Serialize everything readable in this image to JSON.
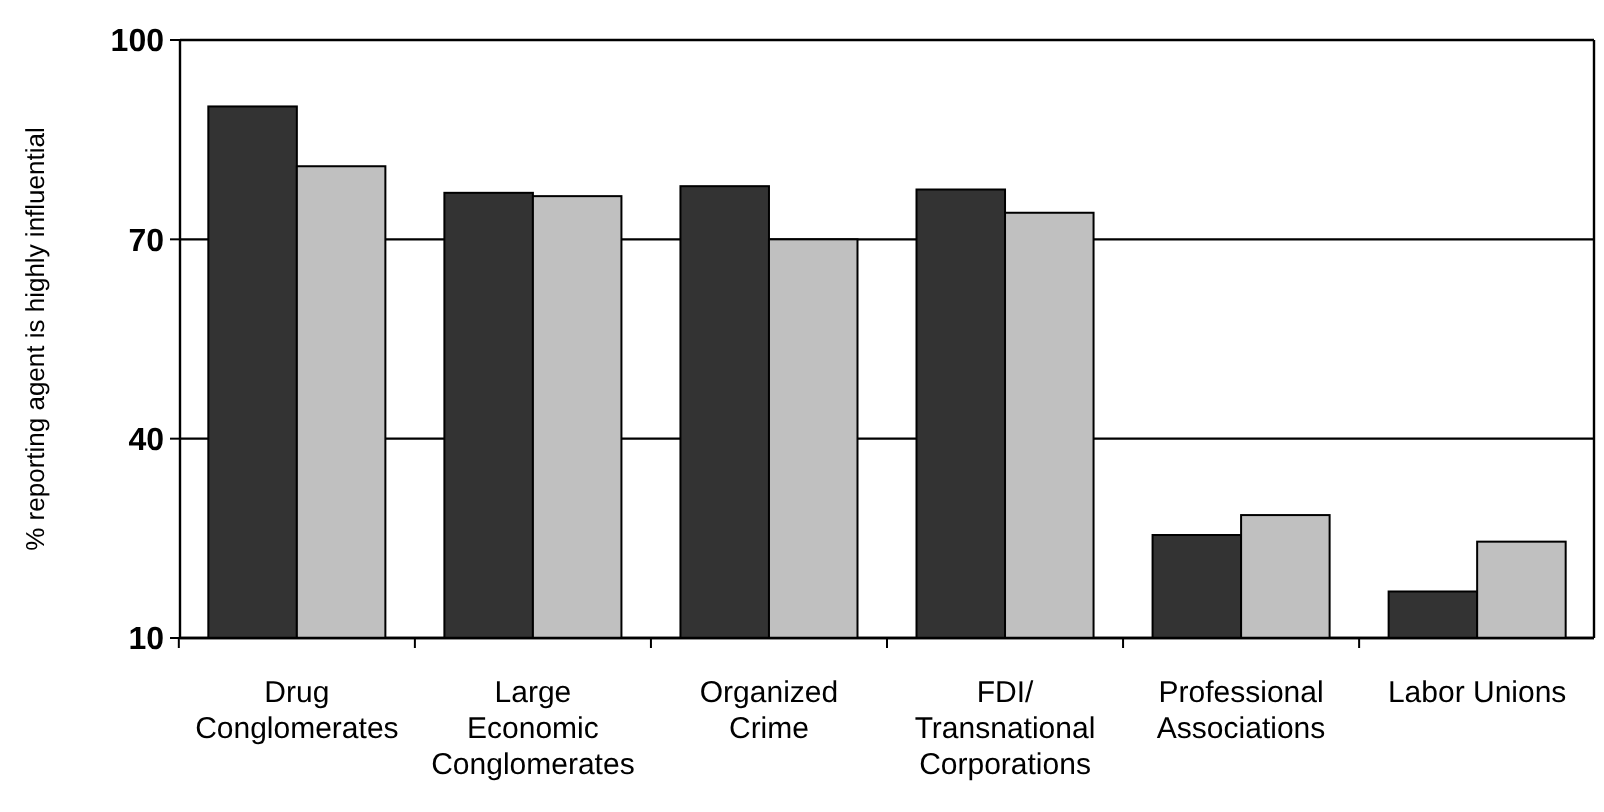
{
  "chart_data": {
    "type": "bar",
    "ylabel": "% reporting agent is highly influential",
    "categories": [
      "Drug\nConglomerates",
      "Large\nEconomic\nConglomerates",
      "Organized\nCrime",
      "FDI/\nTransnational\nCorporations",
      "Professional\nAssociations",
      "Labor Unions"
    ],
    "series": [
      {
        "color": "#333333",
        "values": [
          90,
          77,
          78,
          77.5,
          25.5,
          17
        ]
      },
      {
        "color": "#c0c0c0",
        "values": [
          81,
          76.5,
          70,
          74,
          28.5,
          24.5
        ]
      }
    ],
    "ylim": [
      10,
      100
    ],
    "yticks": [
      10,
      40,
      70,
      100
    ],
    "grid": "y"
  }
}
